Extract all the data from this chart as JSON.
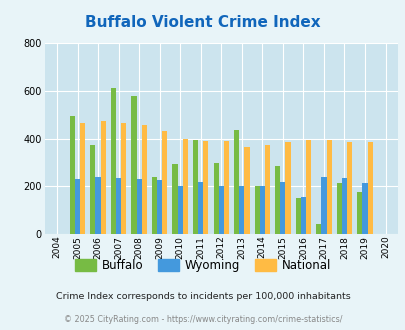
{
  "title": "Buffalo Violent Crime Index",
  "years": [
    2004,
    2005,
    2006,
    2007,
    2008,
    2009,
    2010,
    2011,
    2012,
    2013,
    2014,
    2015,
    2016,
    2017,
    2018,
    2019,
    2020
  ],
  "buffalo": [
    null,
    495,
    375,
    610,
    580,
    240,
    295,
    395,
    300,
    435,
    200,
    285,
    150,
    45,
    215,
    175,
    null
  ],
  "wyoming": [
    null,
    230,
    240,
    235,
    230,
    225,
    200,
    220,
    200,
    200,
    200,
    220,
    155,
    240,
    235,
    215,
    null
  ],
  "national": [
    null,
    465,
    475,
    465,
    455,
    430,
    400,
    390,
    390,
    365,
    375,
    385,
    395,
    395,
    385,
    385,
    null
  ],
  "buffalo_color": "#77bb44",
  "wyoming_color": "#4499dd",
  "national_color": "#ffbb44",
  "bg_color": "#e8f4f8",
  "plot_bg": "#cce4ee",
  "ylim": [
    0,
    800
  ],
  "yticks": [
    0,
    200,
    400,
    600,
    800
  ],
  "subtitle": "Crime Index corresponds to incidents per 100,000 inhabitants",
  "footer": "© 2025 CityRating.com - https://www.cityrating.com/crime-statistics/",
  "title_color": "#1166bb",
  "subtitle_color": "#222222",
  "footer_color": "#888888",
  "bar_width": 0.25
}
